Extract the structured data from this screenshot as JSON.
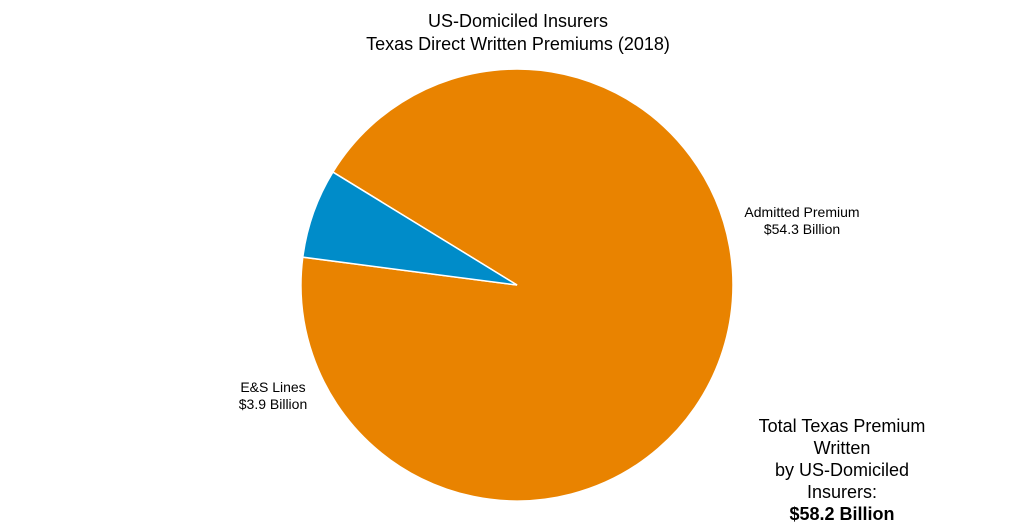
{
  "chart_data": {
    "type": "pie",
    "title": "US-Domiciled Insurers",
    "subtitle": "Texas Direct Written Premiums (2018)",
    "slices": [
      {
        "label": "Admitted Premium",
        "value": 54.3,
        "value_label": "$54.3 Billion",
        "color": "#E98300"
      },
      {
        "label": "E&S Lines",
        "value": 3.9,
        "value_label": "$3.9 Billion",
        "color": "#008CC9"
      }
    ],
    "slice_border_color": "#ffffff",
    "annotation": {
      "lines": [
        "Total Texas Premium Written",
        "by US-Domiciled Insurers:"
      ],
      "value": "$58.2 Billion"
    }
  }
}
